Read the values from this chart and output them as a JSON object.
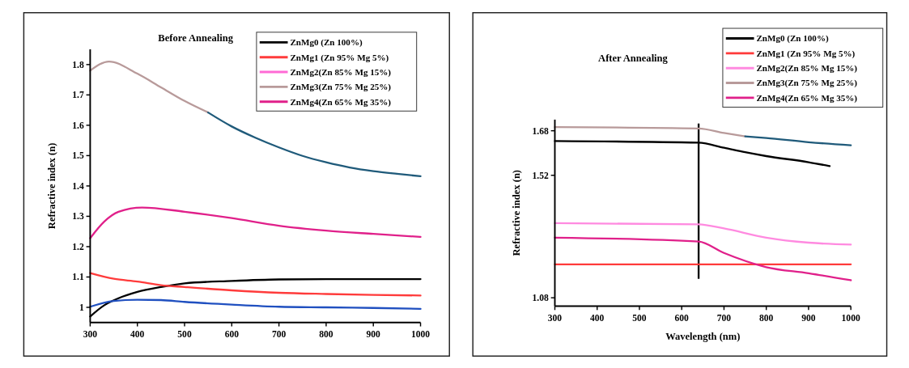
{
  "chart_data": [
    {
      "type": "line",
      "title": "Before Annealing",
      "ylabel": "Refractive index (n)",
      "xlim": [
        300,
        1000
      ],
      "xticks": [
        300,
        400,
        500,
        600,
        700,
        800,
        900,
        1000
      ],
      "ylim": [
        0.95,
        1.85
      ],
      "yticks": [
        1.0,
        1.1,
        1.2,
        1.3,
        1.4,
        1.5,
        1.6,
        1.7,
        1.8
      ],
      "legend": "top right",
      "line_style": "solid",
      "series": [
        {
          "name": "ZnMg0 (Zn 100%)",
          "color": "#000000",
          "x": [
            300,
            330,
            360,
            400,
            450,
            500,
            600,
            700,
            800,
            1000
          ],
          "values": [
            0.97,
            1.007,
            1.03,
            1.051,
            1.067,
            1.079,
            1.087,
            1.092,
            1.093,
            1.093
          ]
        },
        {
          "name": "ZnMg1 (Zn 95% Mg 5%)",
          "color": "#ff3b3b",
          "x": [
            300,
            350,
            400,
            450,
            500,
            600,
            700,
            800,
            900,
            1000
          ],
          "values": [
            1.113,
            1.094,
            1.085,
            1.073,
            1.067,
            1.056,
            1.048,
            1.044,
            1.041,
            1.039
          ]
        },
        {
          "name": "ZnMg2(Zn 85% Mg 15%)",
          "color": "#ff6ad5"
        },
        {
          "name": "ZnMg3(Zn 75% Mg 25%)",
          "color": "#b89a9a",
          "x": [
            300,
            340,
            400,
            450,
            500,
            550
          ],
          "values": [
            1.78,
            1.81,
            1.77,
            1.725,
            1.68,
            1.642
          ]
        },
        {
          "name": "ZnMg4(Zn 65% Mg 35%)",
          "color": "#e0208a",
          "x": [
            300,
            330,
            360,
            410,
            500,
            600,
            700,
            800,
            900,
            1000
          ],
          "values": [
            1.228,
            1.283,
            1.315,
            1.329,
            1.315,
            1.294,
            1.269,
            1.253,
            1.242,
            1.232
          ]
        },
        {
          "color": "#1f5a7a",
          "x": [
            550,
            600,
            650,
            700,
            750,
            800,
            850,
            900,
            950,
            1000
          ],
          "values": [
            1.642,
            1.596,
            1.559,
            1.527,
            1.499,
            1.478,
            1.461,
            1.449,
            1.44,
            1.432
          ]
        },
        {
          "color": "#2050c0",
          "x": [
            300,
            350,
            400,
            450,
            500,
            600,
            700,
            800,
            900,
            1000
          ],
          "values": [
            1.002,
            1.021,
            1.025,
            1.024,
            1.018,
            1.009,
            1.002,
            1.0,
            0.998,
            0.995
          ]
        }
      ]
    },
    {
      "type": "line",
      "title": "After Annealing",
      "xlabel": "Wavelength (nm)",
      "ylabel": "Refractive index (n)",
      "xlim": [
        300,
        1000
      ],
      "xticks": [
        300,
        400,
        500,
        600,
        700,
        800,
        900,
        1000
      ],
      "ylim": [
        1.05,
        1.72
      ],
      "yticks": [
        1.08,
        1.52,
        1.68
      ],
      "legend": "top right",
      "line_style": "solid",
      "ref_lines": [
        {
          "axis": "x",
          "value": 640,
          "color": "#000000"
        }
      ],
      "series": [
        {
          "name": "ZnMg0 (Zn 100%)",
          "color": "#000000",
          "x": [
            300,
            640,
            700,
            750,
            800,
            900,
            950
          ],
          "values": [
            1.643,
            1.637,
            1.619,
            1.603,
            1.589,
            1.567,
            1.553
          ]
        },
        {
          "name": "ZnMg1 (Zn 95% Mg 5%)",
          "color": "#ff3b3b",
          "x": [
            300,
            1000
          ],
          "values": [
            1.2,
            1.2
          ]
        },
        {
          "name": "ZnMg2(Zn 85% Mg 15%)",
          "color": "#ff8ae0",
          "x": [
            300,
            640,
            700,
            800,
            900,
            1000
          ],
          "values": [
            1.348,
            1.344,
            1.329,
            1.296,
            1.278,
            1.271
          ]
        },
        {
          "name": "ZnMg3(Zn 75% Mg 25%)",
          "color": "#b89a9a",
          "x": [
            300,
            640,
            700,
            750
          ],
          "values": [
            1.693,
            1.688,
            1.672,
            1.66
          ]
        },
        {
          "name": "ZnMg4(Zn 65% Mg 35%)",
          "color": "#e0208a",
          "x": [
            300,
            640,
            700,
            800,
            900,
            1000
          ],
          "values": [
            1.296,
            1.282,
            1.241,
            1.19,
            1.168,
            1.143
          ]
        },
        {
          "color": "#1f5a7a",
          "x": [
            750,
            800,
            900,
            1000
          ],
          "values": [
            1.66,
            1.654,
            1.639,
            1.628
          ]
        }
      ]
    }
  ]
}
